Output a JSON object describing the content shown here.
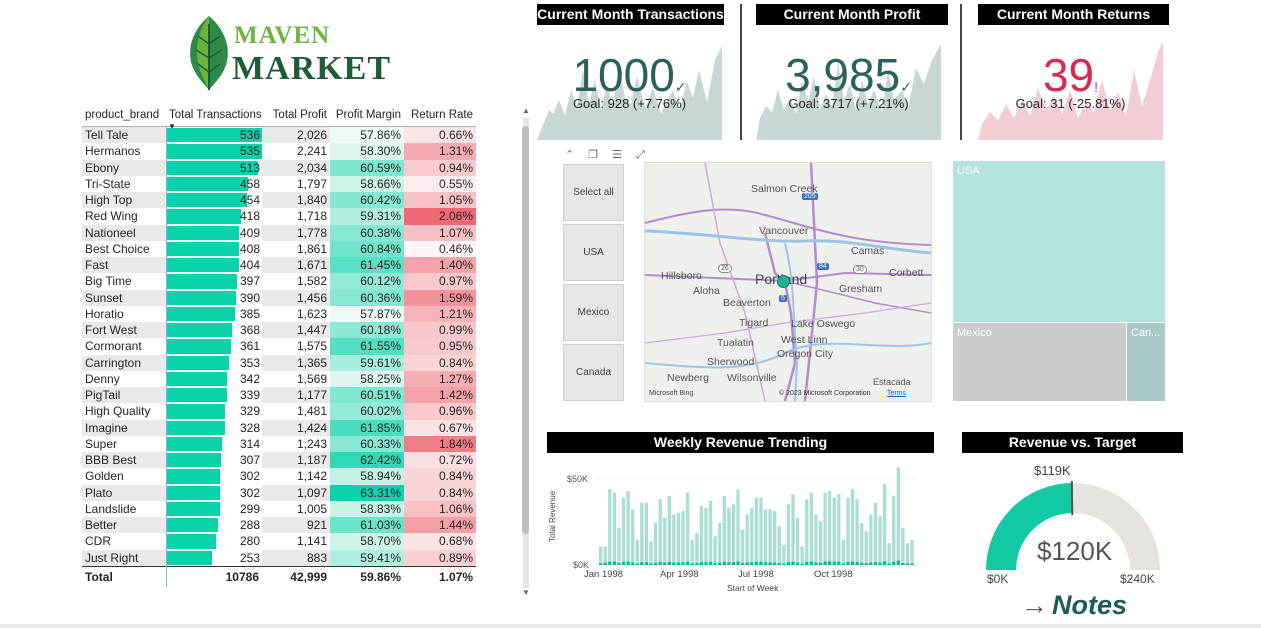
{
  "logo": {
    "line1": "MAVEN",
    "line2": "MARKET"
  },
  "table": {
    "headers": [
      "product_brand",
      "Total Transactions",
      "Total Profit",
      "Profit Margin",
      "Return Rate"
    ],
    "rows": [
      {
        "brand": "Tell Tale",
        "tx": "536",
        "profit": "2,026",
        "margin": "57.86%",
        "ret": "0.66%"
      },
      {
        "brand": "Hermanos",
        "tx": "535",
        "profit": "2,241",
        "margin": "58.30%",
        "ret": "1.31%"
      },
      {
        "brand": "Ebony",
        "tx": "513",
        "profit": "2,034",
        "margin": "60.59%",
        "ret": "0.94%"
      },
      {
        "brand": "Tri-State",
        "tx": "458",
        "profit": "1,797",
        "margin": "58.66%",
        "ret": "0.55%"
      },
      {
        "brand": "High Top",
        "tx": "454",
        "profit": "1,840",
        "margin": "60.42%",
        "ret": "1.05%"
      },
      {
        "brand": "Red Wing",
        "tx": "418",
        "profit": "1,718",
        "margin": "59.31%",
        "ret": "2.06%"
      },
      {
        "brand": "Nationeel",
        "tx": "409",
        "profit": "1,778",
        "margin": "60.38%",
        "ret": "1.07%"
      },
      {
        "brand": "Best Choice",
        "tx": "408",
        "profit": "1,861",
        "margin": "60.84%",
        "ret": "0.46%"
      },
      {
        "brand": "Fast",
        "tx": "404",
        "profit": "1,671",
        "margin": "61.45%",
        "ret": "1.40%"
      },
      {
        "brand": "Big Time",
        "tx": "397",
        "profit": "1,582",
        "margin": "60.12%",
        "ret": "0.97%"
      },
      {
        "brand": "Sunset",
        "tx": "390",
        "profit": "1,456",
        "margin": "60.36%",
        "ret": "1.59%"
      },
      {
        "brand": "Horatio",
        "tx": "385",
        "profit": "1,623",
        "margin": "57.87%",
        "ret": "1.21%"
      },
      {
        "brand": "Fort West",
        "tx": "368",
        "profit": "1,447",
        "margin": "60.18%",
        "ret": "0.99%"
      },
      {
        "brand": "Cormorant",
        "tx": "361",
        "profit": "1,575",
        "margin": "61.55%",
        "ret": "0.95%"
      },
      {
        "brand": "Carrington",
        "tx": "353",
        "profit": "1,365",
        "margin": "59.61%",
        "ret": "0.84%"
      },
      {
        "brand": "Denny",
        "tx": "342",
        "profit": "1,569",
        "margin": "58.25%",
        "ret": "1.27%"
      },
      {
        "brand": "PigTail",
        "tx": "339",
        "profit": "1,177",
        "margin": "60.51%",
        "ret": "1.42%"
      },
      {
        "brand": "High Quality",
        "tx": "329",
        "profit": "1,481",
        "margin": "60.02%",
        "ret": "0.96%"
      },
      {
        "brand": "Imagine",
        "tx": "328",
        "profit": "1,424",
        "margin": "61.85%",
        "ret": "0.67%"
      },
      {
        "brand": "Super",
        "tx": "314",
        "profit": "1,243",
        "margin": "60.33%",
        "ret": "1.84%"
      },
      {
        "brand": "BBB Best",
        "tx": "307",
        "profit": "1,187",
        "margin": "62.42%",
        "ret": "0.72%"
      },
      {
        "brand": "Golden",
        "tx": "302",
        "profit": "1,142",
        "margin": "58.94%",
        "ret": "0.84%"
      },
      {
        "brand": "Plato",
        "tx": "302",
        "profit": "1,097",
        "margin": "63.31%",
        "ret": "0.84%"
      },
      {
        "brand": "Landslide",
        "tx": "299",
        "profit": "1,005",
        "margin": "58.83%",
        "ret": "1.06%"
      },
      {
        "brand": "Better",
        "tx": "288",
        "profit": "921",
        "margin": "61.03%",
        "ret": "1.44%"
      },
      {
        "brand": "CDR",
        "tx": "280",
        "profit": "1,141",
        "margin": "58.70%",
        "ret": "0.68%"
      },
      {
        "brand": "Just Right",
        "tx": "253",
        "profit": "883",
        "margin": "59.41%",
        "ret": "0.89%"
      }
    ],
    "total": {
      "label": "Total",
      "tx": "10786",
      "profit": "42,999",
      "margin": "59.86%",
      "ret": "1.07%"
    }
  },
  "kpis": [
    {
      "title": "Current Month Transactions",
      "value": "1000",
      "mark": "✓",
      "goal": "Goal: 928 (+7.76%)",
      "value_color": "#2d5f5c",
      "spark_color": "#c8d6d5"
    },
    {
      "title": "Current Month Profit",
      "value": "3,985",
      "mark": "✓",
      "goal": "Goal: 3717 (+7.21%)",
      "value_color": "#2d5f5c",
      "spark_color": "#c8d6d5"
    },
    {
      "title": "Current Month Returns",
      "value": "39",
      "mark": "!",
      "goal": "Goal: 31 (-25.81%)",
      "value_color": "#d62b4f",
      "spark_color": "#f3cdd4"
    }
  ],
  "slicer": {
    "items": [
      "Select all",
      "USA",
      "Mexico",
      "Canada"
    ]
  },
  "map": {
    "labels": [
      "Salmon Creek",
      "Vancouver",
      "Camas",
      "Hillsboro",
      "Portland",
      "Corbett",
      "Aloha",
      "Gresham",
      "Beaverton",
      "Tigard",
      "Lake Oswego",
      "Tualatin",
      "West Linn",
      "Oregon City",
      "Sherwood",
      "Newberg",
      "Wilsonville",
      "Estacada"
    ],
    "highways": [
      "205",
      "26",
      "84",
      "30",
      "5"
    ],
    "copyright": "© 2023 Microsoft Corporation",
    "terms": "Terms",
    "bing": "Microsoft Bing"
  },
  "treemap": {
    "items": [
      "USA",
      "Mexico",
      "Can..."
    ]
  },
  "weekly": {
    "title": "Weekly Revenue Trending",
    "ylabel": "Total Revenue",
    "xlabel": "Start of Week",
    "yticks": [
      "$50K",
      "$0K"
    ],
    "xticks": [
      "Jan 1998",
      "Apr 1998",
      "Jul 1998",
      "Oct 1998"
    ]
  },
  "gauge": {
    "title": "Revenue vs. Target",
    "value": "$120K",
    "target": "$119K",
    "min": "$0K",
    "max": "$240K"
  },
  "notes": {
    "label": "Notes"
  },
  "chart_data": {
    "type": "bar",
    "title": "Weekly Revenue Trending",
    "xlabel": "Start of Week",
    "ylabel": "Total Revenue",
    "ylim": [
      0,
      60000
    ],
    "series": [
      {
        "name": "Total Revenue",
        "values": [
          11000,
          11000,
          45000,
          43000,
          22000,
          40000,
          44000,
          33000,
          15000,
          37000,
          37000,
          14000,
          25000,
          39000,
          28000,
          41000,
          30000,
          31000,
          32000,
          43000,
          15000,
          19000,
          35000,
          34000,
          38000,
          17000,
          25000,
          41000,
          34000,
          36000,
          45000,
          21000,
          30000,
          34000,
          40000,
          40000,
          33000,
          33000,
          32000,
          23000,
          12000,
          36000,
          42000,
          28000,
          11000,
          39000,
          43000,
          30000,
          26000,
          43000,
          44000,
          40000,
          42000,
          15000,
          40000,
          45000,
          39000,
          25000,
          20000,
          30000,
          37000,
          29000,
          48000,
          13000,
          41000,
          58000,
          22000,
          13000,
          15000
        ]
      },
      {
        "name": "Secondary",
        "values": [
          1000,
          1500,
          2000,
          2000,
          1200,
          1800,
          2000,
          1500,
          900,
          1700,
          1700,
          900,
          1300,
          1800,
          1400,
          1900,
          1500,
          1500,
          1600,
          2000,
          900,
          1100,
          1700,
          1600,
          1800,
          1000,
          1300,
          1900,
          1600,
          1700,
          2100,
          1200,
          1500,
          1600,
          1900,
          1900,
          1600,
          1600,
          1500,
          1200,
          800,
          1700,
          2000,
          1400,
          800,
          1800,
          2000,
          1500,
          1300,
          2000,
          2100,
          1900,
          2000,
          900,
          1900,
          2100,
          1800,
          1300,
          1100,
          1500,
          1700,
          1400,
          2200,
          900,
          1900,
          2600,
          1200,
          900,
          900
        ]
      }
    ]
  },
  "gauge_data": {
    "value": 120,
    "target": 119,
    "min": 0,
    "max": 240
  }
}
